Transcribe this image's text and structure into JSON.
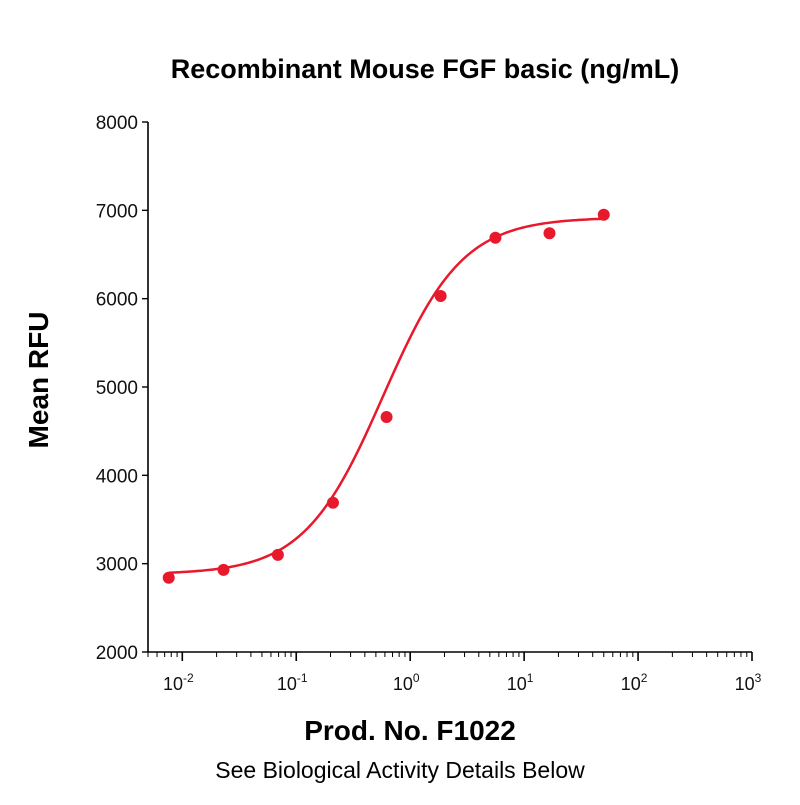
{
  "chart_data": {
    "type": "scatter",
    "title": "Recombinant Mouse FGF basic (ng/mL)",
    "ylabel": "Mean RFU",
    "xlabel": "",
    "x_scale": "log",
    "xlim": [
      0.005,
      1000
    ],
    "ylim": [
      2000,
      8000
    ],
    "yticks": [
      "2000",
      "3000",
      "4000",
      "5000",
      "6000",
      "7000",
      "8000"
    ],
    "xticks": [
      {
        "base": "10",
        "exp": "-2",
        "value": 0.01
      },
      {
        "base": "10",
        "exp": "-1",
        "value": 0.1
      },
      {
        "base": "10",
        "exp": "0",
        "value": 1
      },
      {
        "base": "10",
        "exp": "1",
        "value": 10
      },
      {
        "base": "10",
        "exp": "2",
        "value": 100
      },
      {
        "base": "10",
        "exp": "3",
        "value": 1000
      }
    ],
    "grid": false,
    "color": "#e8192c",
    "series": [
      {
        "x": [
          0.0076,
          0.023,
          0.069,
          0.21,
          0.62,
          1.85,
          5.6,
          16.7,
          50
        ],
        "y": [
          2840,
          2930,
          3100,
          3690,
          4660,
          6030,
          6690,
          6740,
          6950
        ]
      }
    ],
    "fit_curve": {
      "bottom": 2880,
      "top": 6920,
      "ec50": 0.58,
      "hill": 1.25
    }
  },
  "footer": {
    "product": "Prod. No. F1022",
    "note": "See Biological Activity Details Below"
  }
}
